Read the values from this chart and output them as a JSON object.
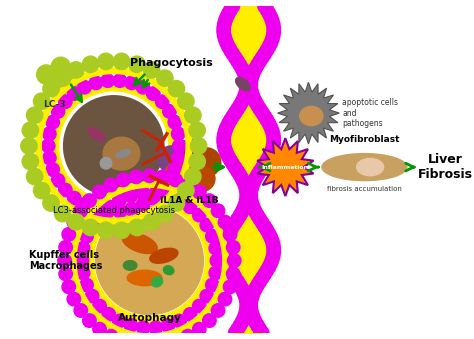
{
  "background_color": "#ffffff",
  "fig_width": 4.74,
  "fig_height": 3.39,
  "dpi": 100,
  "labels": {
    "phagocytosis": "Phagocytosis",
    "lc3": "LC-3",
    "lc3_assoc": "LC3-associated phagocytosis",
    "apoptotic": "apoptotic cells\nand\npathogens",
    "il1": "IL1A & IL1B",
    "inflammation": "Inflammation",
    "myofibroblast": "Myofibroblast",
    "fibrosis_acc": "fibrosis accumulation",
    "liver_fibrosis": "Liver\nFibrosis",
    "kupffer": "Kupffer cells\nMacrophages",
    "autophagy": "Autophagy"
  },
  "colors": {
    "magenta": "#EE00EE",
    "yellow": "#FFEE00",
    "lime": "#AACC22",
    "green_arrow": "#009900",
    "red_inhibit": "#CC2200",
    "orange_burst": "#FF8800",
    "purple_burst_outline": "#880099",
    "background": "#ffffff"
  }
}
